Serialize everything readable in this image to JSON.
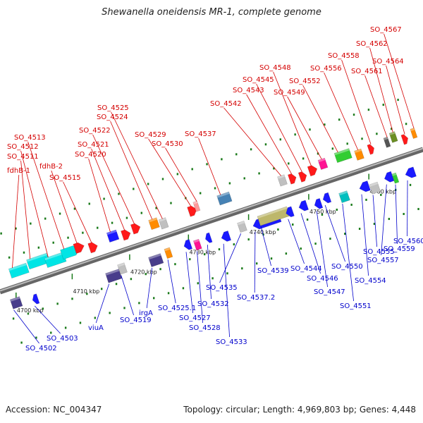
{
  "title": "Shewanella oneidensis MR-1, complete genome",
  "footer": {
    "accession_label": "Accession:",
    "accession": "NC_004347",
    "topology_label": "Topology:",
    "topology": "circular",
    "length_label": "Length:",
    "length": "4,969,803 bp",
    "genes_label": "Genes:",
    "genes": "4,448"
  },
  "colors": {
    "forward_label": "#d40000",
    "reverse_label": "#0000cc",
    "backbone": "#8a8a8a",
    "tick": "#1a7a1a"
  },
  "scale": {
    "unit": "kbp",
    "ticks": [
      "4700 kbp",
      "4710 kbp",
      "4720 kbp",
      "4730 kbp",
      "4740 kbp",
      "4750 kbp",
      "4760 kbp"
    ]
  },
  "forward_genes": [
    {
      "label": "fdhB-1",
      "color": "#00e5e5"
    },
    {
      "label": "SO_4511",
      "color": "#00e5e5"
    },
    {
      "label": "SO_4512",
      "color": "#00e5e5"
    },
    {
      "label": "SO_4513",
      "color": "#00e5e5"
    },
    {
      "label": "fdhB-2",
      "color": "#ff1a1a"
    },
    {
      "label": "SO_4515",
      "color": "#ff1a1a"
    },
    {
      "label": "SO_4520",
      "color": "#1a1aff"
    },
    {
      "label": "SO_4521",
      "color": "#ff1a1a"
    },
    {
      "label": "SO_4522",
      "color": "#ff1a1a"
    },
    {
      "label": "SO_4524",
      "color": "#ff8c00"
    },
    {
      "label": "SO_4525",
      "color": "#c0c0c0"
    },
    {
      "label": "SO_4529",
      "color": "#ff1a1a"
    },
    {
      "label": "SO_4530",
      "color": "#ff9999"
    },
    {
      "label": "SO_4537",
      "color": "#4682b4"
    },
    {
      "label": "SO_4542",
      "color": "#c0c0c0"
    },
    {
      "label": "SO_4543",
      "color": "#ff1a1a"
    },
    {
      "label": "SO_4545",
      "color": "#ff1a1a"
    },
    {
      "label": "SO_4548",
      "color": "#ff1a1a"
    },
    {
      "label": "SO_4549",
      "color": "#ff1493"
    },
    {
      "label": "SO_4552",
      "color": "#32cd32"
    },
    {
      "label": "SO_4556",
      "color": "#ff8c00"
    },
    {
      "label": "SO_4558",
      "color": "#ff1a1a"
    },
    {
      "label": "SO_4561",
      "color": "#555555"
    },
    {
      "label": "SO_4562",
      "color": "#6b8e23"
    },
    {
      "label": "SO_4564",
      "color": "#ff1a1a"
    },
    {
      "label": "SO_4567",
      "color": "#ff8c00"
    }
  ],
  "reverse_genes": [
    {
      "label": "SO_4502",
      "color": "#483d8b"
    },
    {
      "label": "SO_4503",
      "color": "#1a1aff"
    },
    {
      "label": "viuA",
      "color": "#483d8b"
    },
    {
      "label": "SO_4519",
      "color": "#c0c0c0"
    },
    {
      "label": "irgA",
      "color": "#483d8b"
    },
    {
      "label": "SO_4525.1",
      "color": "#ff8c00"
    },
    {
      "label": "SO_4527",
      "color": "#1a1aff"
    },
    {
      "label": "SO_4528",
      "color": "#ff1493"
    },
    {
      "label": "SO_4532",
      "color": "#1a1aff"
    },
    {
      "label": "SO_4533",
      "color": "#1a1aff"
    },
    {
      "label": "SO_4535",
      "color": "#c0c0c0"
    },
    {
      "label": "SO_4537.2",
      "color": "#1a1aff"
    },
    {
      "label": "SO_4539",
      "color": "#bdb76b"
    },
    {
      "label": "SO_4544",
      "color": "#1a1aff"
    },
    {
      "label": "SO_4546",
      "color": "#1a1aff"
    },
    {
      "label": "SO_4547",
      "color": "#1a1aff"
    },
    {
      "label": "SO_4550",
      "color": "#1a1aff"
    },
    {
      "label": "SO_4551",
      "color": "#00bfbf"
    },
    {
      "label": "SO_4554",
      "color": "#1a1aff"
    },
    {
      "label": "SO_4555",
      "color": "#c0c0c0"
    },
    {
      "label": "SO_4557",
      "color": "#1a1aff"
    },
    {
      "label": "SO_4559",
      "color": "#32cd32"
    },
    {
      "label": "SO_4560",
      "color": "#1a1aff"
    }
  ]
}
